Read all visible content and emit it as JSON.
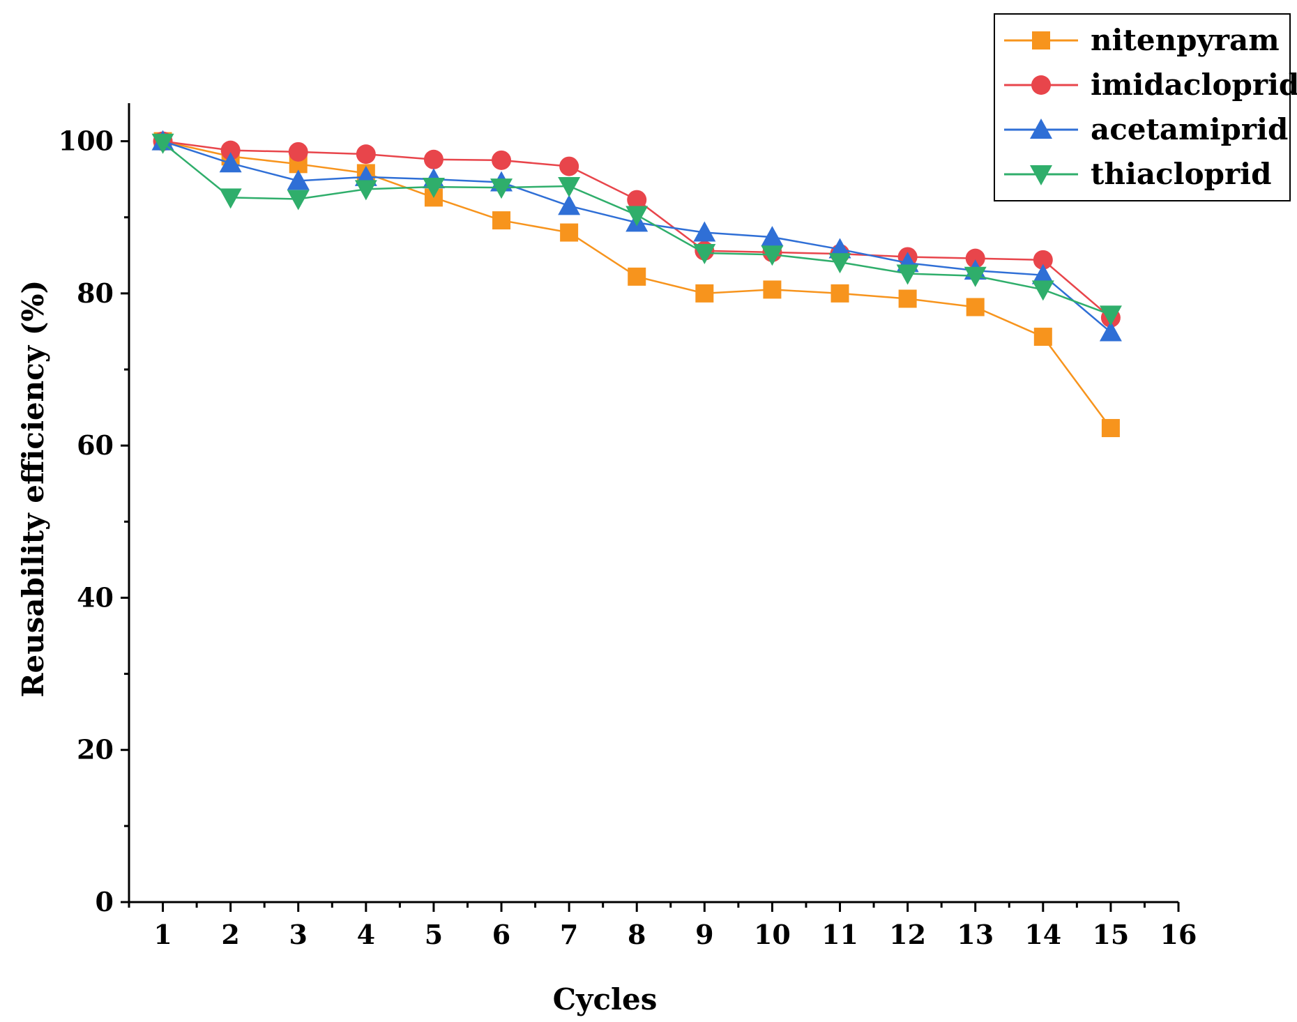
{
  "chart_data": {
    "type": "line",
    "xlabel": "Cycles",
    "ylabel": "Reusability efficiency (%)",
    "xlim": [
      0.5,
      16
    ],
    "ylim": [
      0,
      105
    ],
    "xticks": [
      1,
      2,
      3,
      4,
      5,
      6,
      7,
      8,
      9,
      10,
      11,
      12,
      13,
      14,
      15,
      16
    ],
    "yticks": [
      0,
      20,
      40,
      60,
      80,
      100
    ],
    "legend_position": "top-right",
    "grid": false,
    "x": [
      1,
      2,
      3,
      4,
      5,
      6,
      7,
      8,
      9,
      10,
      11,
      12,
      13,
      14,
      15
    ],
    "series": [
      {
        "name": "nitenpyram",
        "color": "#f7941d",
        "marker": "square",
        "values": [
          100,
          98.0,
          97.0,
          95.8,
          92.6,
          89.6,
          88.0,
          82.2,
          80.0,
          80.5,
          80.0,
          79.3,
          78.2,
          74.3,
          62.3
        ]
      },
      {
        "name": "imidacloprid",
        "color": "#e8454b",
        "marker": "circle",
        "values": [
          100,
          98.8,
          98.6,
          98.3,
          97.6,
          97.5,
          96.7,
          92.3,
          85.6,
          85.4,
          85.2,
          84.8,
          84.6,
          84.4,
          76.8
        ]
      },
      {
        "name": "acetamiprid",
        "color": "#2f6fd6",
        "marker": "triangle-up",
        "values": [
          100,
          97.1,
          94.8,
          95.3,
          95.0,
          94.6,
          91.5,
          89.3,
          88.0,
          87.4,
          85.8,
          84.0,
          83.0,
          82.4,
          74.9
        ]
      },
      {
        "name": "thiacloprid",
        "color": "#2fae6b",
        "marker": "triangle-down",
        "values": [
          99.8,
          92.6,
          92.4,
          93.7,
          94.0,
          93.9,
          94.1,
          90.3,
          85.3,
          85.1,
          84.1,
          82.6,
          82.3,
          80.5,
          77.2
        ]
      }
    ]
  }
}
